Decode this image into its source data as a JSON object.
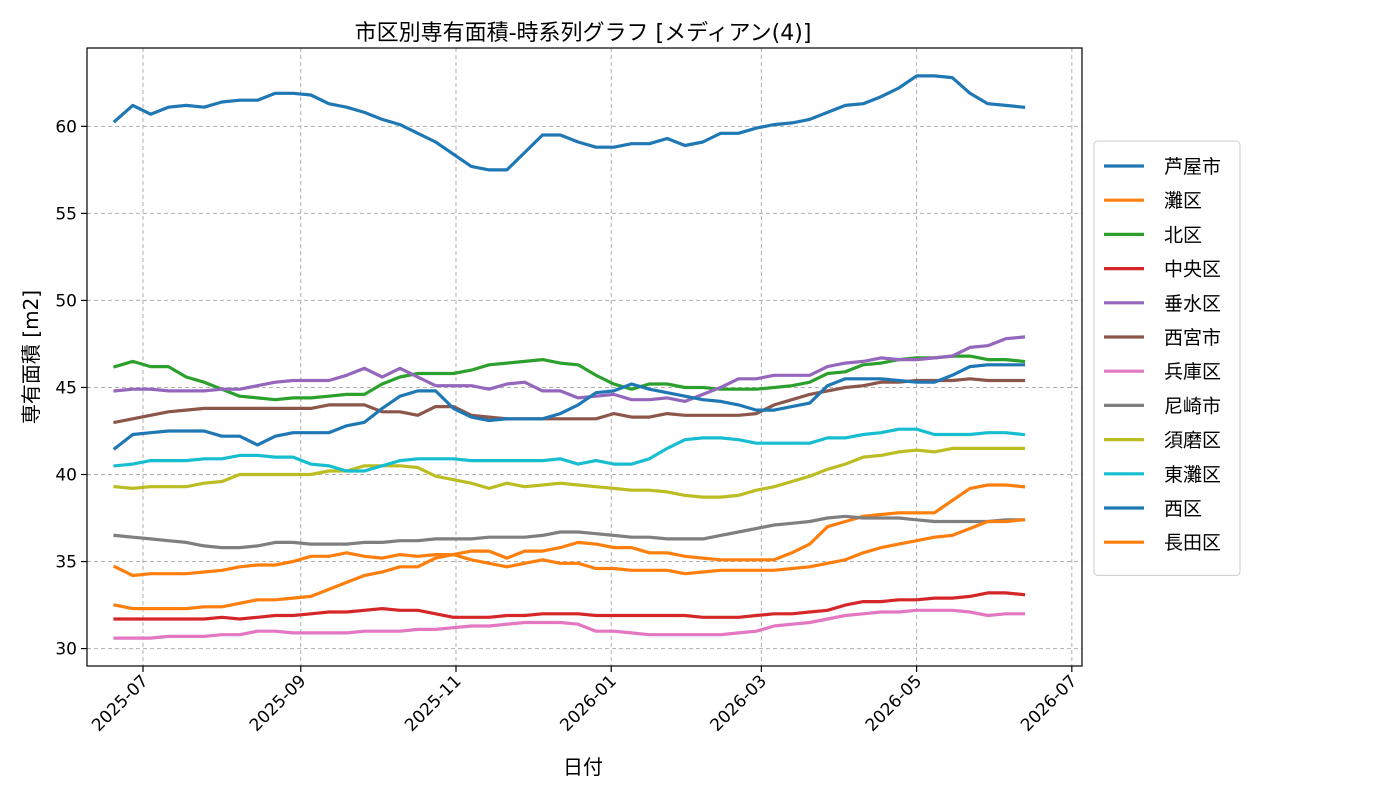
{
  "chart_data": {
    "type": "line",
    "title": "市区別専有面積-時系列グラフ [メディアン(4)]",
    "xlabel": "日付",
    "ylabel": "専有面積 [m2]",
    "ylim": [
      29,
      64.5
    ],
    "xlim": [
      "2025-06-09",
      "2026-07-05"
    ],
    "grid": true,
    "legend_position": "right",
    "yticks": [
      30,
      35,
      40,
      45,
      50,
      55,
      60
    ],
    "xticks": [
      "2025-07-01",
      "2025-09-01",
      "2025-11-01",
      "2026-01-01",
      "2026-03-01",
      "2026-05-01",
      "2026-07-01"
    ],
    "xtick_labels": [
      "2025-07",
      "2025-09",
      "2025-11",
      "2026-01",
      "2026-03",
      "2026-05",
      "2026-07"
    ],
    "x": [
      "2025-06-20",
      "2025-06-27",
      "2025-07-04",
      "2025-07-11",
      "2025-07-18",
      "2025-07-25",
      "2025-08-01",
      "2025-08-08",
      "2025-08-15",
      "2025-08-22",
      "2025-08-29",
      "2025-09-05",
      "2025-09-12",
      "2025-09-19",
      "2025-09-26",
      "2025-10-03",
      "2025-10-10",
      "2025-10-17",
      "2025-10-24",
      "2025-10-31",
      "2025-11-07",
      "2025-11-14",
      "2025-11-21",
      "2025-11-28",
      "2025-12-05",
      "2025-12-12",
      "2025-12-19",
      "2025-12-26",
      "2026-01-02",
      "2026-01-09",
      "2026-01-16",
      "2026-01-23",
      "2026-01-30",
      "2026-02-06",
      "2026-02-13",
      "2026-02-20",
      "2026-02-27",
      "2026-03-06",
      "2026-03-13",
      "2026-03-20",
      "2026-03-27",
      "2026-04-03",
      "2026-04-10",
      "2026-04-17",
      "2026-04-24",
      "2026-05-01",
      "2026-05-08",
      "2026-05-15",
      "2026-05-22",
      "2026-05-29",
      "2026-06-05",
      "2026-06-12"
    ],
    "series": [
      {
        "name": "芦屋市",
        "color": "#1f77b4",
        "values": [
          60.3,
          61.2,
          60.7,
          61.1,
          61.2,
          61.1,
          61.4,
          61.5,
          61.5,
          61.9,
          61.9,
          61.8,
          61.3,
          61.1,
          60.8,
          60.4,
          60.1,
          59.6,
          59.1,
          58.4,
          57.7,
          57.5,
          57.5,
          58.5,
          59.5,
          59.5,
          59.1,
          58.8,
          58.8,
          59.0,
          59.0,
          59.3,
          58.9,
          59.1,
          59.6,
          59.6,
          59.9,
          60.1,
          60.2,
          60.4,
          60.8,
          61.2,
          61.3,
          61.7,
          62.2,
          62.9,
          62.9,
          62.8,
          61.9,
          61.3,
          61.2,
          61.1
        ]
      },
      {
        "name": "灘区",
        "color": "#ff7f0e",
        "values": [
          32.5,
          32.3,
          32.3,
          32.3,
          32.3,
          32.4,
          32.4,
          32.6,
          32.8,
          32.8,
          32.9,
          33.0,
          33.4,
          33.8,
          34.2,
          34.4,
          34.7,
          34.7,
          35.2,
          35.4,
          35.6,
          35.6,
          35.2,
          35.6,
          35.6,
          35.8,
          36.1,
          36.0,
          35.8,
          35.8,
          35.5,
          35.5,
          35.3,
          35.2,
          35.1,
          35.1,
          35.1,
          35.1,
          35.5,
          36.0,
          37.0,
          37.3,
          37.6,
          37.7,
          37.8,
          37.8,
          37.8,
          38.5,
          39.2,
          39.4,
          39.4,
          39.3
        ]
      },
      {
        "name": "北区",
        "color": "#2ca02c",
        "values": [
          46.2,
          46.5,
          46.2,
          46.2,
          45.6,
          45.3,
          44.9,
          44.5,
          44.4,
          44.3,
          44.4,
          44.4,
          44.5,
          44.6,
          44.6,
          45.2,
          45.6,
          45.8,
          45.8,
          45.8,
          46.0,
          46.3,
          46.4,
          46.5,
          46.6,
          46.4,
          46.3,
          45.7,
          45.2,
          44.9,
          45.2,
          45.2,
          45.0,
          45.0,
          44.9,
          44.9,
          44.9,
          45.0,
          45.1,
          45.3,
          45.8,
          45.9,
          46.3,
          46.4,
          46.6,
          46.7,
          46.7,
          46.8,
          46.8,
          46.6,
          46.6,
          46.5
        ]
      },
      {
        "name": "中央区",
        "color": "#d62728",
        "values": [
          31.7,
          31.7,
          31.7,
          31.7,
          31.7,
          31.7,
          31.8,
          31.7,
          31.8,
          31.9,
          31.9,
          32.0,
          32.1,
          32.1,
          32.2,
          32.3,
          32.2,
          32.2,
          32.0,
          31.8,
          31.8,
          31.8,
          31.9,
          31.9,
          32.0,
          32.0,
          32.0,
          31.9,
          31.9,
          31.9,
          31.9,
          31.9,
          31.9,
          31.8,
          31.8,
          31.8,
          31.9,
          32.0,
          32.0,
          32.1,
          32.2,
          32.5,
          32.7,
          32.7,
          32.8,
          32.8,
          32.9,
          32.9,
          33.0,
          33.2,
          33.2,
          33.1
        ]
      },
      {
        "name": "垂水区",
        "color": "#9467bd",
        "values": [
          44.8,
          44.9,
          44.9,
          44.8,
          44.8,
          44.8,
          44.9,
          44.9,
          45.1,
          45.3,
          45.4,
          45.4,
          45.4,
          45.7,
          46.1,
          45.6,
          46.1,
          45.6,
          45.1,
          45.1,
          45.1,
          44.9,
          45.2,
          45.3,
          44.8,
          44.8,
          44.4,
          44.5,
          44.6,
          44.3,
          44.3,
          44.4,
          44.2,
          44.6,
          45.0,
          45.5,
          45.5,
          45.7,
          45.7,
          45.7,
          46.2,
          46.4,
          46.5,
          46.7,
          46.6,
          46.6,
          46.7,
          46.8,
          47.3,
          47.4,
          47.8,
          47.9
        ]
      },
      {
        "name": "西宮市",
        "color": "#8c564b",
        "values": [
          43.0,
          43.2,
          43.4,
          43.6,
          43.7,
          43.8,
          43.8,
          43.8,
          43.8,
          43.8,
          43.8,
          43.8,
          44.0,
          44.0,
          44.0,
          43.6,
          43.6,
          43.4,
          43.9,
          43.9,
          43.4,
          43.3,
          43.2,
          43.2,
          43.2,
          43.2,
          43.2,
          43.2,
          43.5,
          43.3,
          43.3,
          43.5,
          43.4,
          43.4,
          43.4,
          43.4,
          43.5,
          44.0,
          44.3,
          44.6,
          44.8,
          45.0,
          45.1,
          45.3,
          45.3,
          45.4,
          45.4,
          45.4,
          45.5,
          45.4,
          45.4,
          45.4
        ]
      },
      {
        "name": "兵庫区",
        "color": "#e377c2",
        "values": [
          30.6,
          30.6,
          30.6,
          30.7,
          30.7,
          30.7,
          30.8,
          30.8,
          31.0,
          31.0,
          30.9,
          30.9,
          30.9,
          30.9,
          31.0,
          31.0,
          31.0,
          31.1,
          31.1,
          31.2,
          31.3,
          31.3,
          31.4,
          31.5,
          31.5,
          31.5,
          31.4,
          31.0,
          31.0,
          30.9,
          30.8,
          30.8,
          30.8,
          30.8,
          30.8,
          30.9,
          31.0,
          31.3,
          31.4,
          31.5,
          31.7,
          31.9,
          32.0,
          32.1,
          32.1,
          32.2,
          32.2,
          32.2,
          32.1,
          31.9,
          32.0,
          32.0
        ]
      },
      {
        "name": "尼崎市",
        "color": "#7f7f7f",
        "values": [
          36.5,
          36.4,
          36.3,
          36.2,
          36.1,
          35.9,
          35.8,
          35.8,
          35.9,
          36.1,
          36.1,
          36.0,
          36.0,
          36.0,
          36.1,
          36.1,
          36.2,
          36.2,
          36.3,
          36.3,
          36.3,
          36.4,
          36.4,
          36.4,
          36.5,
          36.7,
          36.7,
          36.6,
          36.5,
          36.4,
          36.4,
          36.3,
          36.3,
          36.3,
          36.5,
          36.7,
          36.9,
          37.1,
          37.2,
          37.3,
          37.5,
          37.6,
          37.5,
          37.5,
          37.5,
          37.4,
          37.3,
          37.3,
          37.3,
          37.3,
          37.4,
          37.4
        ]
      },
      {
        "name": "須磨区",
        "color": "#bcbd22",
        "values": [
          39.3,
          39.2,
          39.3,
          39.3,
          39.3,
          39.5,
          39.6,
          40.0,
          40.0,
          40.0,
          40.0,
          40.0,
          40.2,
          40.2,
          40.5,
          40.5,
          40.5,
          40.4,
          39.9,
          39.7,
          39.5,
          39.2,
          39.5,
          39.3,
          39.4,
          39.5,
          39.4,
          39.3,
          39.2,
          39.1,
          39.1,
          39.0,
          38.8,
          38.7,
          38.7,
          38.8,
          39.1,
          39.3,
          39.6,
          39.9,
          40.3,
          40.6,
          41.0,
          41.1,
          41.3,
          41.4,
          41.3,
          41.5,
          41.5,
          41.5,
          41.5,
          41.5
        ]
      },
      {
        "name": "東灘区",
        "color": "#17becf",
        "values": [
          40.5,
          40.6,
          40.8,
          40.8,
          40.8,
          40.9,
          40.9,
          41.1,
          41.1,
          41.0,
          41.0,
          40.6,
          40.5,
          40.2,
          40.2,
          40.5,
          40.8,
          40.9,
          40.9,
          40.9,
          40.8,
          40.8,
          40.8,
          40.8,
          40.8,
          40.9,
          40.6,
          40.8,
          40.6,
          40.6,
          40.9,
          41.5,
          42.0,
          42.1,
          42.1,
          42.0,
          41.8,
          41.8,
          41.8,
          41.8,
          42.1,
          42.1,
          42.3,
          42.4,
          42.6,
          42.6,
          42.3,
          42.3,
          42.3,
          42.4,
          42.4,
          42.3
        ]
      },
      {
        "name": "西区",
        "color": "#1f77b4",
        "values": [
          41.5,
          42.3,
          42.4,
          42.5,
          42.5,
          42.5,
          42.2,
          42.2,
          41.7,
          42.2,
          42.4,
          42.4,
          42.4,
          42.8,
          43.0,
          43.8,
          44.5,
          44.8,
          44.8,
          43.8,
          43.3,
          43.1,
          43.2,
          43.2,
          43.2,
          43.5,
          44.0,
          44.7,
          44.8,
          45.2,
          44.9,
          44.7,
          44.5,
          44.3,
          44.2,
          44.0,
          43.7,
          43.7,
          43.9,
          44.1,
          45.1,
          45.5,
          45.5,
          45.5,
          45.4,
          45.3,
          45.3,
          45.7,
          46.2,
          46.3,
          46.3,
          46.3
        ]
      },
      {
        "name": "長田区",
        "color": "#ff7f0e",
        "values": [
          34.7,
          34.2,
          34.3,
          34.3,
          34.3,
          34.4,
          34.5,
          34.7,
          34.8,
          34.8,
          35.0,
          35.3,
          35.3,
          35.5,
          35.3,
          35.2,
          35.4,
          35.3,
          35.4,
          35.4,
          35.1,
          34.9,
          34.7,
          34.9,
          35.1,
          34.9,
          34.9,
          34.6,
          34.6,
          34.5,
          34.5,
          34.5,
          34.3,
          34.4,
          34.5,
          34.5,
          34.5,
          34.5,
          34.6,
          34.7,
          34.9,
          35.1,
          35.5,
          35.8,
          36.0,
          36.2,
          36.4,
          36.5,
          36.9,
          37.3,
          37.3,
          37.4
        ]
      }
    ]
  }
}
